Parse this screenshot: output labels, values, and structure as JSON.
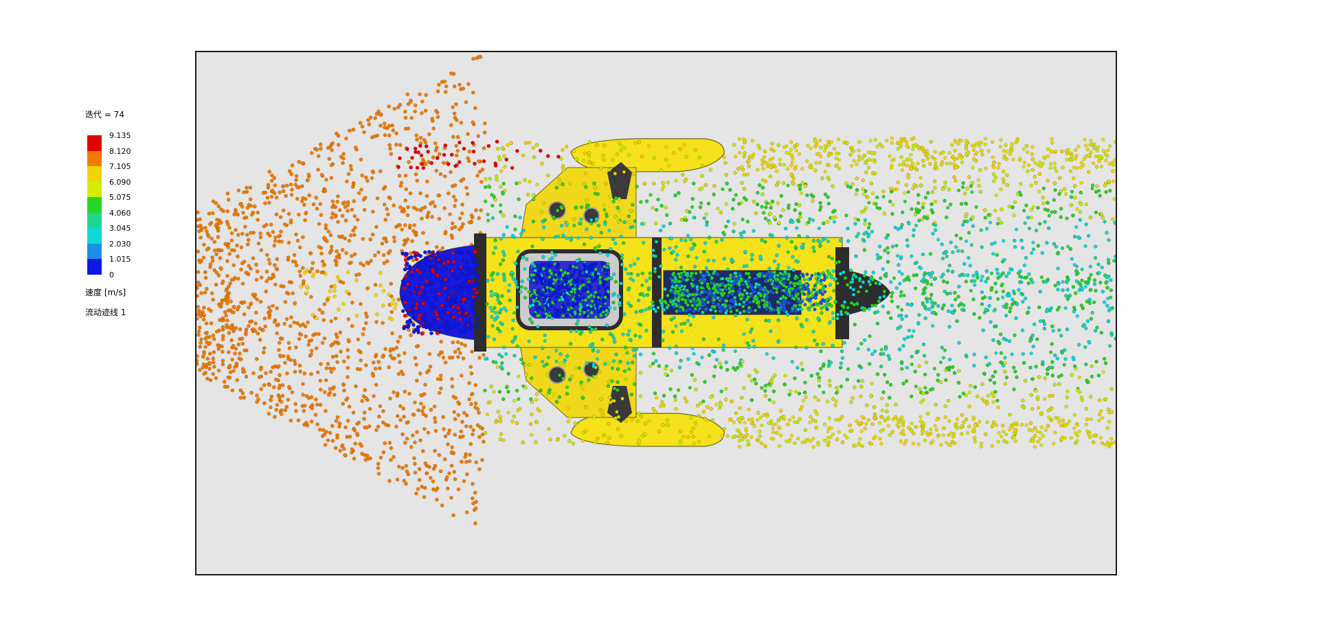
{
  "legend": {
    "iteration_label": "迭代 = 74",
    "quantity_label": "速度 [m/s]",
    "trace_label": "流动迹线 1",
    "ticks": [
      "9.135",
      "8.120",
      "7.105",
      "6.090",
      "5.075",
      "4.060",
      "3.045",
      "2.030",
      "1.015",
      "0"
    ],
    "colors": [
      "#e10000",
      "#f07b00",
      "#f2d500",
      "#d5ee00",
      "#29d42a",
      "#20d58f",
      "#10d8d8",
      "#1b8fe8",
      "#0b1ae0"
    ]
  },
  "viewport": {
    "background": "#e5e5e5",
    "border": "#1a1a1a"
  },
  "palette": {
    "body_yellow": "#f5e21a",
    "body_dark": "#2d2d2d",
    "vehicle_outline": "#6a6a1a"
  }
}
